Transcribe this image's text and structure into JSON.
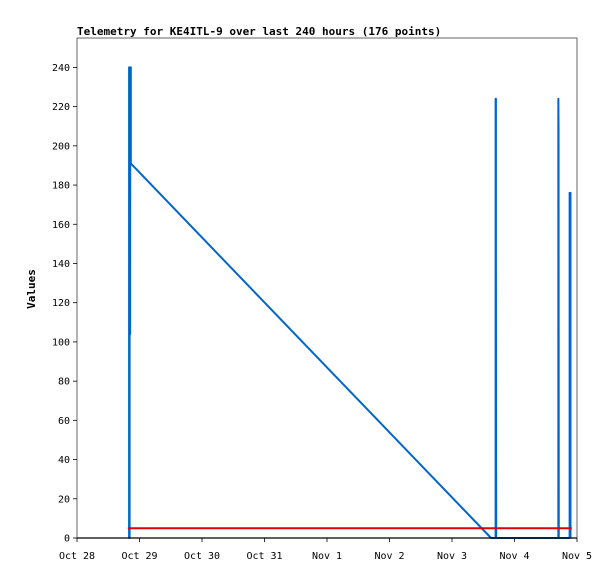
{
  "chart_data": {
    "type": "line",
    "title": "Telemetry for KE4ITL-9 over last 240 hours (176 points)",
    "xlabel": "",
    "ylabel": "Values",
    "x_tick_labels": [
      "Oct 28",
      "Oct 29",
      "Oct 30",
      "Oct 31",
      "Nov 1",
      "Nov 2",
      "Nov 3",
      "Nov 4",
      "Nov 5"
    ],
    "xlim": [
      "Oct 28",
      "Nov 5"
    ],
    "ylim": [
      0,
      255
    ],
    "y_ticks": [
      0,
      20,
      40,
      60,
      80,
      100,
      120,
      140,
      160,
      180,
      200,
      220,
      240
    ],
    "grid": false,
    "legend": "none",
    "series": [
      {
        "color": "#0066cc",
        "points": [
          [
            "Oct 28 20:00",
            0
          ],
          [
            "Oct 28 20:00",
            240
          ],
          [
            "Oct 28 20:05",
            240
          ],
          [
            "Oct 28 20:05",
            0
          ],
          [
            "Oct 28 20:12",
            0
          ],
          [
            "Oct 28 20:12",
            226
          ],
          [
            "Oct 28 20:15",
            198
          ],
          [
            "Oct 28 20:18",
            142
          ],
          [
            "Oct 28 20:21",
            170
          ],
          [
            "Oct 28 20:24",
            104
          ],
          [
            "Oct 28 20:27",
            240
          ],
          [
            "Oct 28 20:30",
            240
          ],
          [
            "Oct 28 20:33",
            192
          ],
          [
            "Oct 28 20:36",
            240
          ],
          [
            "Oct 28 20:40",
            240
          ],
          [
            "Oct 28 20:40",
            191
          ],
          [
            "Nov 3 15:00",
            0
          ],
          [
            "Nov 3 16:45",
            0
          ],
          [
            "Nov 3 16:45",
            224
          ],
          [
            "Nov 3 16:52",
            224
          ],
          [
            "Nov 3 16:52",
            144
          ],
          [
            "Nov 3 16:58",
            0
          ],
          [
            "Nov 4 16:50",
            0
          ],
          [
            "Nov 4 16:50",
            224
          ],
          [
            "Nov 4 16:55",
            208
          ],
          [
            "Nov 4 17:00",
            0
          ],
          [
            "Nov 4 21:10",
            0
          ],
          [
            "Nov 4 21:10",
            176
          ],
          [
            "Nov 4 21:30",
            176
          ],
          [
            "Nov 4 21:30",
            0
          ]
        ]
      },
      {
        "color": "#dd0000",
        "points": [
          [
            "Oct 28 19:30",
            5
          ],
          [
            "Nov 4 22:00",
            5
          ]
        ]
      }
    ]
  }
}
